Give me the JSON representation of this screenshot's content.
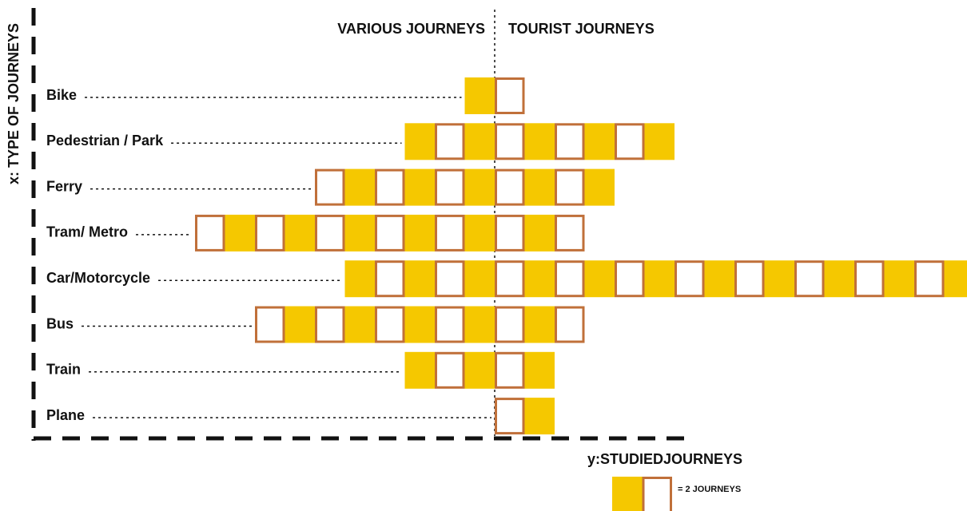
{
  "chart_data": {
    "type": "pictogram",
    "y_axis_label": "x: TYPE OF JOURNEYS",
    "x_axis_label": "y:STUDIEDJOURNEYS",
    "legend_label": "= 2 JOURNEYS",
    "categories": [
      "Bike",
      "Pedestrian / Park",
      "Ferry",
      "Tram/ Metro",
      "Car/Motorcycle",
      "Bus",
      "Train",
      "Plane"
    ],
    "series": [
      {
        "name": "VARIOUS JOURNEYS",
        "side": "left",
        "values": [
          1,
          3,
          6,
          10,
          5,
          8,
          3,
          0
        ]
      },
      {
        "name": "TOURIST JOURNEYS",
        "side": "right",
        "values": [
          1,
          6,
          4,
          3,
          16,
          3,
          2,
          2
        ]
      }
    ],
    "colors": {
      "filled": "#f5c800",
      "outline": "#c0703a"
    }
  }
}
